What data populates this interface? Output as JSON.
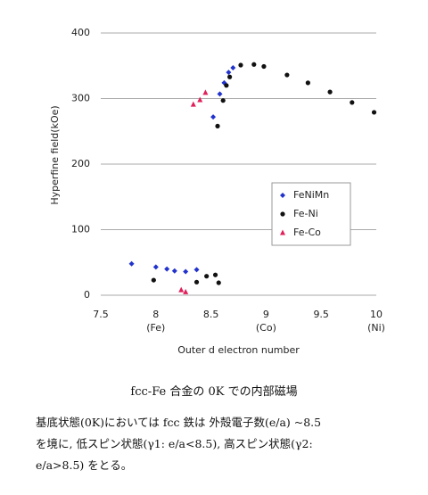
{
  "chart_data": {
    "type": "scatter",
    "xlabel": "Outer d electron number",
    "ylabel": "Hyperfine field(kOe)",
    "xlim": [
      7.5,
      10
    ],
    "ylim": [
      0,
      400
    ],
    "xticks": [
      7.5,
      8,
      8.5,
      9,
      9.5,
      10
    ],
    "yticks": [
      0,
      100,
      200,
      300,
      400
    ],
    "grid": true,
    "legend": "right",
    "element_labels": [
      {
        "value": 8,
        "label": "(Fe)"
      },
      {
        "value": 9,
        "label": "(Co)"
      },
      {
        "value": 10,
        "label": "(Ni)"
      }
    ],
    "series": [
      {
        "name": "FeNiMn",
        "color": "#2233cc",
        "marker": "diamond",
        "x": [
          7.78,
          8.0,
          8.1,
          8.17,
          8.27,
          8.37,
          8.52,
          8.58,
          8.62,
          8.66,
          8.7
        ],
        "values": [
          48,
          43,
          40,
          37,
          36,
          39,
          272,
          307,
          324,
          340,
          347
        ]
      },
      {
        "name": "Fe-Ni",
        "color": "#111111",
        "marker": "circle",
        "x": [
          7.98,
          8.37,
          8.46,
          8.54,
          8.57,
          8.56,
          8.61,
          8.64,
          8.67,
          8.77,
          8.89,
          8.98,
          9.19,
          9.38,
          9.58,
          9.78,
          9.98
        ],
        "values": [
          23,
          20,
          29,
          31,
          19,
          258,
          297,
          320,
          333,
          351,
          352,
          349,
          336,
          324,
          310,
          294,
          279
        ]
      },
      {
        "name": "Fe-Co",
        "color": "#e0205a",
        "marker": "triangle",
        "x": [
          8.23,
          8.27,
          8.34,
          8.4,
          8.45
        ],
        "values": [
          8,
          5,
          291,
          298,
          309
        ]
      }
    ]
  },
  "caption": "fcc-Fe 合金の 0K での内部磁場",
  "paragraph": [
    "基底状態(0K)においては fcc 鉄は 外殻電子数(e/a) ~8.5",
    "を境に, 低スピン状態(γ1: e/a<8.5), 高スピン状態(γ2:",
    "e/a>8.5) をとる。"
  ]
}
